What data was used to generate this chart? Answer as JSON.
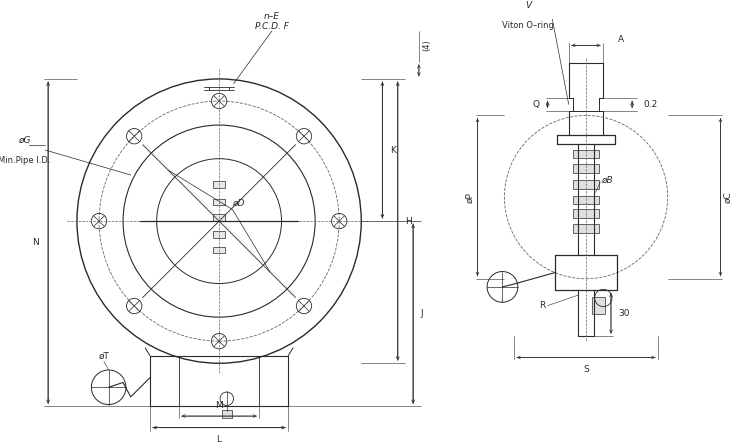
{
  "bg_color": "#ffffff",
  "line_color": "#2a2a2a",
  "dim_color": "#2a2a2a",
  "dashed_color": "#666666",
  "fig_width": 7.5,
  "fig_height": 4.47,
  "dpi": 100,
  "labels": {
    "nE": "n–E",
    "PCD_F": "P.C.D. F",
    "paren4": "(4)",
    "phiG": "øG",
    "minPipeID": "Min.Pipe I.D.",
    "phiD": "øD",
    "K": "K",
    "H": "H",
    "J": "J",
    "N": "N",
    "phiT": "øT",
    "M": "M",
    "L": "L",
    "V": "V",
    "viton": "Viton O–ring",
    "A": "A",
    "val02": "0.2",
    "Q": "Q",
    "phiP": "øP",
    "phiB": "øB",
    "phiC": "øC",
    "R": "R",
    "val30": "30",
    "S": "S"
  }
}
